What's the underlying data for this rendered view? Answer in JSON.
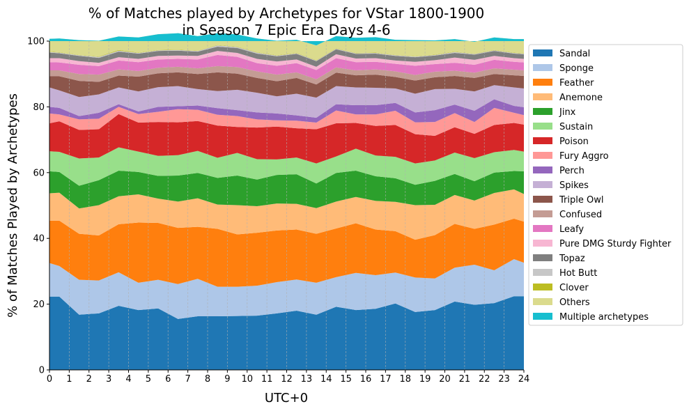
{
  "chart_data": {
    "type": "area",
    "stacked": true,
    "title": [
      "% of Matches played by Archetypes for VStar 1800-1900",
      "in Season 7 Epic Era Days 4-6"
    ],
    "xlabel": "UTC+0",
    "ylabel": "% of Matches Played by Archetypes",
    "xlim": [
      0,
      24
    ],
    "ylim": [
      0,
      100
    ],
    "xticks": [
      0,
      1,
      2,
      3,
      4,
      5,
      6,
      7,
      8,
      9,
      10,
      11,
      12,
      13,
      14,
      15,
      16,
      17,
      18,
      19,
      20,
      21,
      22,
      23,
      24
    ],
    "yticks": [
      0,
      20,
      40,
      60,
      80,
      100
    ],
    "grid": "vertical dashed",
    "legend_position": "outside right",
    "x": [
      0,
      0.5,
      1.5,
      2.5,
      3.5,
      4.5,
      5.5,
      6.5,
      7.5,
      8.5,
      9.5,
      10.5,
      11.5,
      12.5,
      13.5,
      14.5,
      15.5,
      16.5,
      17.5,
      18.5,
      19.5,
      20.5,
      21.5,
      22.5,
      23.5,
      24
    ],
    "series": [
      {
        "name": "Sandal",
        "color": "#1f77b4",
        "values": [
          22.3,
          22.3,
          16.8,
          17.2,
          19.5,
          18.2,
          18.7,
          15.5,
          16.3,
          16.3,
          16.4,
          16.5,
          17.2,
          18.0,
          16.8,
          19.2,
          18.2,
          18.6,
          20.2,
          17.6,
          18.2,
          20.8,
          19.8,
          20.3,
          22.4,
          22.4
        ]
      },
      {
        "name": "Sponge",
        "color": "#aec7e8",
        "values": [
          10.2,
          9.3,
          10.6,
          10.0,
          10.2,
          8.3,
          8.7,
          10.6,
          11.4,
          9.0,
          8.9,
          9.1,
          9.5,
          9.5,
          9.7,
          9.0,
          11.3,
          10.2,
          9.4,
          10.5,
          9.6,
          10.3,
          12.2,
          10.0,
          11.3,
          10.2
        ]
      },
      {
        "name": "Feather",
        "color": "#ff7f0e",
        "values": [
          12.9,
          13.8,
          14.0,
          13.7,
          14.6,
          18.3,
          17.3,
          17.1,
          15.8,
          17.6,
          15.9,
          16.1,
          15.7,
          15.2,
          14.9,
          14.8,
          15.1,
          13.9,
          12.6,
          11.5,
          13.2,
          13.3,
          10.9,
          13.9,
          12.3,
          12.5
        ]
      },
      {
        "name": "Anemone",
        "color": "#ffbb78",
        "values": [
          8.3,
          8.5,
          7.7,
          9.2,
          8.5,
          8.6,
          7.4,
          8.0,
          8.7,
          7.4,
          8.9,
          8.1,
          8.2,
          7.8,
          7.8,
          8.2,
          8.0,
          8.7,
          8.9,
          10.5,
          9.2,
          8.8,
          8.6,
          9.6,
          8.9,
          8.4
        ]
      },
      {
        "name": "Jinx",
        "color": "#2ca02c",
        "values": [
          6.7,
          6.3,
          6.9,
          7.6,
          7.8,
          6.8,
          6.9,
          7.9,
          7.7,
          8.1,
          9.0,
          8.1,
          8.7,
          9.0,
          7.5,
          8.7,
          8.0,
          7.5,
          7.2,
          6.2,
          7.3,
          6.4,
          5.9,
          6.2,
          5.6,
          6.9
        ]
      },
      {
        "name": "Sustain",
        "color": "#98df8a",
        "values": [
          6.1,
          6.1,
          8.3,
          6.9,
          7.1,
          6.2,
          6.1,
          6.2,
          6.7,
          6.1,
          6.9,
          6.2,
          4.7,
          5.1,
          6.1,
          5.0,
          6.7,
          6.3,
          6.5,
          6.5,
          6.2,
          6.5,
          7.0,
          6.2,
          6.4,
          6.0
        ]
      },
      {
        "name": "Poison",
        "color": "#d62728",
        "values": [
          8.5,
          9.3,
          8.7,
          8.6,
          10.1,
          8.8,
          10.3,
          10.0,
          9.1,
          9.8,
          7.9,
          9.6,
          10.0,
          8.9,
          10.4,
          10.1,
          7.8,
          9.0,
          9.7,
          8.9,
          7.5,
          7.7,
          7.4,
          8.3,
          8.2,
          8.2
        ]
      },
      {
        "name": "Fury Aggro",
        "color": "#ff9896",
        "values": [
          3.0,
          2.1,
          3.2,
          3.2,
          2.2,
          2.6,
          3.1,
          4.0,
          3.4,
          3.3,
          3.3,
          2.5,
          1.9,
          2.3,
          2.0,
          3.9,
          2.6,
          3.5,
          4.3,
          3.6,
          4.2,
          4.3,
          3.6,
          5.2,
          3.1,
          2.9
        ]
      },
      {
        "name": "Perch",
        "color": "#9467bd",
        "values": [
          2.0,
          2.0,
          1.0,
          1.8,
          0.8,
          0.8,
          1.5,
          0.9,
          1.3,
          2.0,
          1.8,
          2.1,
          2.1,
          1.6,
          1.5,
          1.9,
          2.8,
          2.8,
          2.4,
          3.0,
          3.6,
          2.6,
          3.4,
          2.6,
          2.1,
          2.4
        ]
      },
      {
        "name": "Spikes",
        "color": "#c5b0d5",
        "values": [
          5.9,
          5.3,
          5.8,
          5.6,
          5.1,
          6.1,
          6.0,
          6.1,
          5.0,
          5.2,
          6.2,
          6.0,
          5.2,
          6.6,
          6.1,
          5.5,
          5.4,
          5.3,
          4.4,
          5.7,
          6.4,
          4.8,
          5.9,
          4.3,
          5.6,
          5.7
        ]
      },
      {
        "name": "Triple Owl",
        "color": "#8c564b",
        "values": [
          3.4,
          4.3,
          4.9,
          3.8,
          3.6,
          4.5,
          4.2,
          4.2,
          4.6,
          5.7,
          4.9,
          4.5,
          4.6,
          4.8,
          4.0,
          4.1,
          3.7,
          4.0,
          3.5,
          4.0,
          3.6,
          3.9,
          4.1,
          3.4,
          3.7,
          3.8
        ]
      },
      {
        "name": "Confused",
        "color": "#c49c94",
        "values": [
          1.8,
          1.8,
          2.1,
          2.2,
          1.9,
          1.7,
          1.7,
          1.7,
          1.7,
          1.9,
          2.0,
          2.0,
          2.0,
          1.7,
          1.6,
          1.6,
          1.5,
          1.6,
          1.7,
          1.7,
          1.7,
          1.6,
          1.6,
          1.7,
          1.7,
          1.7
        ]
      },
      {
        "name": "Leafy",
        "color": "#e377c2",
        "values": [
          2.5,
          2.4,
          2.8,
          2.6,
          2.7,
          2.7,
          2.5,
          2.4,
          2.7,
          3.4,
          3.1,
          2.5,
          2.7,
          2.8,
          2.8,
          2.8,
          2.5,
          2.3,
          2.3,
          2.8,
          2.3,
          2.4,
          2.4,
          2.6,
          2.4,
          2.4
        ]
      },
      {
        "name": "Pure DMG Sturdy Fighter",
        "color": "#f7b6d2",
        "values": [
          1.2,
          1.3,
          1.1,
          1.0,
          1.0,
          1.0,
          1.1,
          1.0,
          1.1,
          1.2,
          1.2,
          1.3,
          1.3,
          1.1,
          1.0,
          1.2,
          1.1,
          1.1,
          1.0,
          1.2,
          1.2,
          1.6,
          1.5,
          1.2,
          1.1,
          1.1
        ]
      },
      {
        "name": "Topaz",
        "color": "#7f7f7f",
        "values": [
          1.7,
          1.5,
          1.6,
          1.5,
          1.7,
          1.6,
          1.5,
          1.5,
          1.3,
          1.3,
          1.5,
          1.6,
          1.6,
          1.7,
          1.7,
          1.5,
          1.4,
          1.4,
          1.4,
          1.4,
          1.4,
          1.4,
          1.6,
          1.5,
          1.4,
          1.4
        ]
      },
      {
        "name": "Hot Butt",
        "color": "#c7c7c7",
        "values": [
          0.2,
          0.2,
          0.2,
          0.3,
          0.3,
          0.2,
          0.2,
          0.2,
          0.2,
          0.4,
          0.3,
          0.3,
          0.2,
          0.2,
          0.2,
          0.2,
          0.2,
          0.2,
          0.2,
          0.2,
          0.2,
          0.3,
          0.2,
          0.2,
          0.2,
          0.2
        ]
      },
      {
        "name": "Clover",
        "color": "#bcbd22",
        "values": [
          0.1,
          0.1,
          0.1,
          0.1,
          0.2,
          0.1,
          0.1,
          0.1,
          0.1,
          0.1,
          0.1,
          0.1,
          0.1,
          0.1,
          0.1,
          0.1,
          0.1,
          0.1,
          0.1,
          0.1,
          0.1,
          0.1,
          0.1,
          0.1,
          0.1,
          0.1
        ]
      },
      {
        "name": "Others",
        "color": "#dbdb8d",
        "values": [
          3.9,
          4.2,
          4.5,
          4.8,
          4.1,
          4.6,
          4.8,
          5.0,
          4.4,
          3.6,
          3.7,
          4.2,
          4.4,
          4.0,
          4.5,
          3.7,
          4.6,
          4.7,
          4.6,
          4.9,
          4.3,
          3.8,
          3.6,
          3.8,
          4.1,
          4.3
        ]
      },
      {
        "name": "Multiple archetypes",
        "color": "#17becf",
        "values": [
          1.3,
          1.2,
          1.4,
          1.4,
          1.3,
          1.1,
          1.2,
          1.3,
          1.4,
          1.3,
          1.3,
          1.2,
          1.3,
          1.4,
          1.3,
          1.2,
          1.3,
          1.4,
          1.4,
          1.4,
          1.3,
          1.4,
          1.4,
          1.2,
          1.2,
          1.2
        ]
      }
    ]
  }
}
